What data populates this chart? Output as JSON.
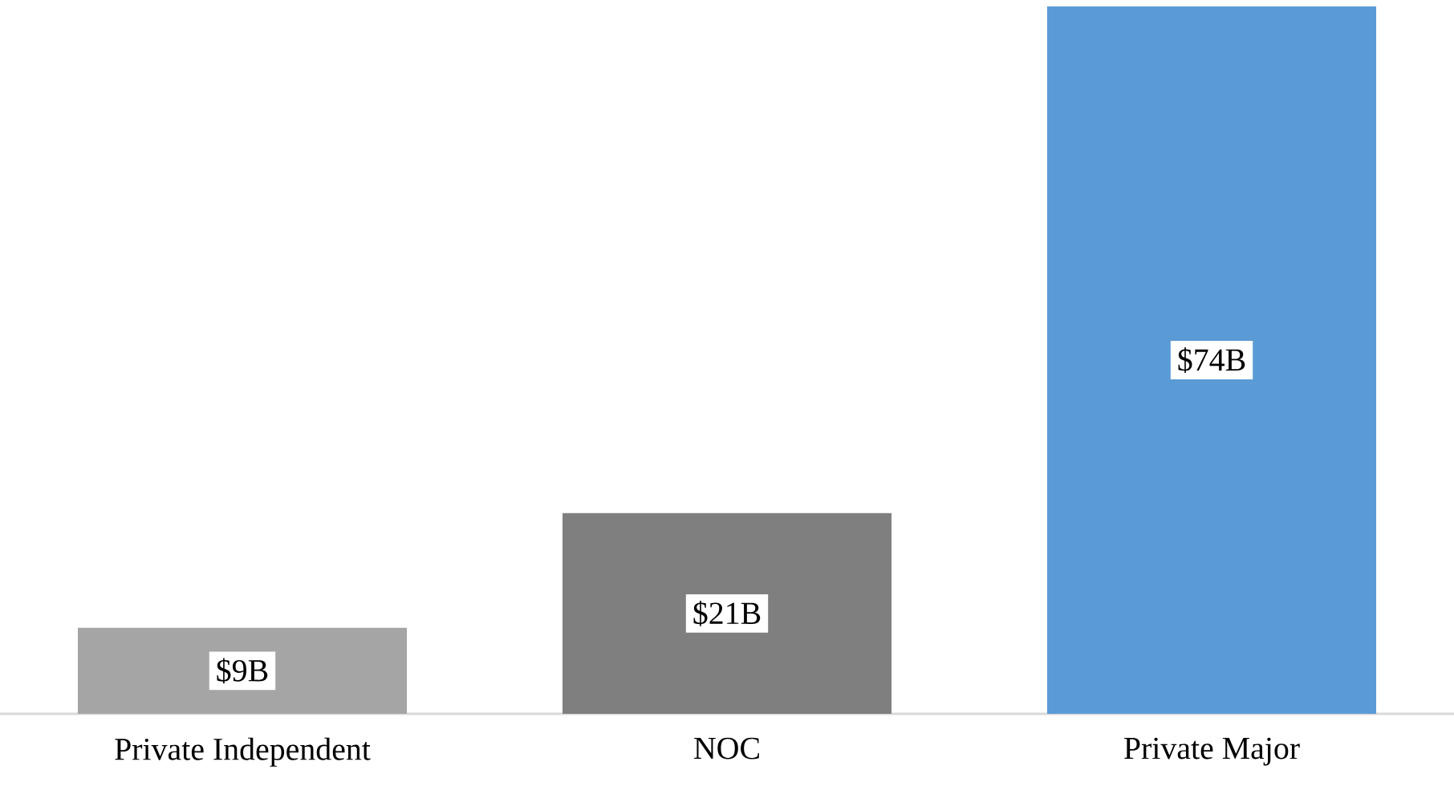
{
  "chart_data": {
    "type": "bar",
    "categories": [
      "Private Independent",
      "NOC",
      "Private Major"
    ],
    "values": [
      9,
      21,
      74
    ],
    "colors": [
      "#a5a5a5",
      "#7f7f7f",
      "#5b9bd5"
    ],
    "value_labels": [
      "$9B",
      "$21B",
      "$74B"
    ]
  }
}
